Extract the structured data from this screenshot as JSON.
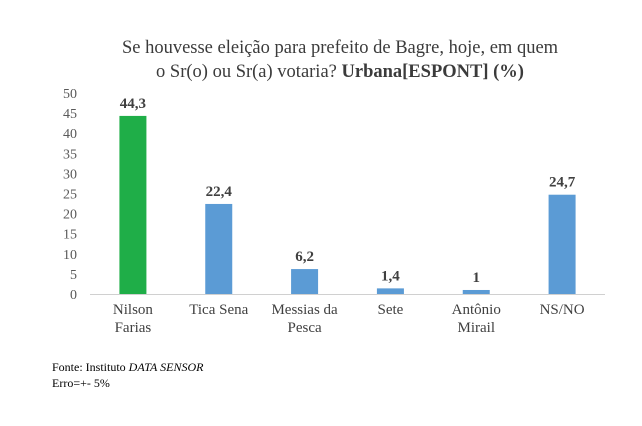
{
  "chart_data": {
    "type": "bar",
    "title_line1": "Se houvesse eleição para prefeito de Bagre, hoje, em quem",
    "title_line2_plain": "o Sr(o) ou Sr(a) votaria?",
    "title_line2_bold": "Urbana[ESPONT] (%)",
    "categories": [
      [
        "Nilson",
        "Farias"
      ],
      [
        "Tica Sena"
      ],
      [
        "Messias da",
        "Pesca"
      ],
      [
        "Sete"
      ],
      [
        "Antônio",
        "Mirail"
      ],
      [
        "NS/NO"
      ]
    ],
    "values": [
      44.3,
      22.4,
      6.2,
      1.4,
      1,
      24.7
    ],
    "value_labels": [
      "44,3",
      "22,4",
      "6,2",
      "1,4",
      "1",
      "24,7"
    ],
    "colors": [
      "#1fae48",
      "#5b9bd5",
      "#5b9bd5",
      "#5b9bd5",
      "#5b9bd5",
      "#5b9bd5"
    ],
    "ylim": [
      0,
      50
    ],
    "yticks": [
      0,
      5,
      10,
      15,
      20,
      25,
      30,
      35,
      40,
      45,
      50
    ],
    "grid": false,
    "legend": "none"
  },
  "source": {
    "prefix": "Fonte: Instituto ",
    "name": "DATA SENSOR",
    "error": "Erro=+- 5%"
  }
}
